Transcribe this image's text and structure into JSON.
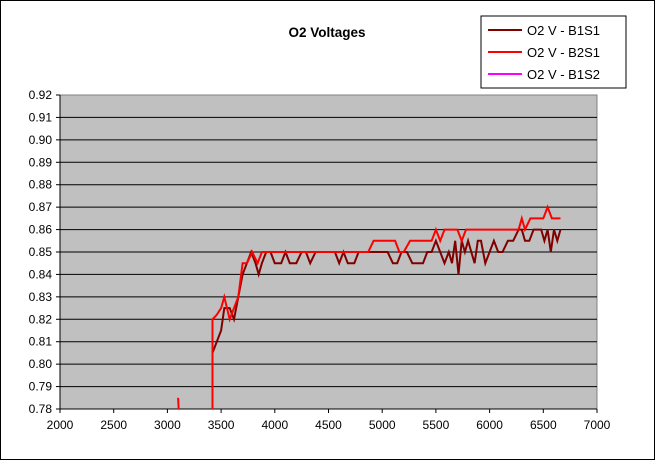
{
  "chart_data": {
    "type": "line",
    "title": "O2 Voltages",
    "xlabel": "",
    "ylabel": "",
    "xlim": [
      2000,
      7000
    ],
    "ylim": [
      0.78,
      0.92
    ],
    "x_ticks": [
      "2000",
      "2500",
      "3000",
      "3500",
      "4000",
      "4500",
      "5000",
      "5500",
      "6000",
      "6500",
      "7000"
    ],
    "y_ticks": [
      "0.78",
      "0.79",
      "0.80",
      "0.81",
      "0.82",
      "0.83",
      "0.84",
      "0.85",
      "0.86",
      "0.87",
      "0.88",
      "0.89",
      "0.90",
      "0.91",
      "0.92"
    ],
    "grid": "horizontal",
    "legend_position": "top-right",
    "colors": {
      "plot_area": "#c0c0c0",
      "frame": "#000000"
    },
    "series": [
      {
        "name": "O2 V - B1S1",
        "color": "#800000",
        "points": [
          [
            3420,
            0.805
          ],
          [
            3460,
            0.81
          ],
          [
            3500,
            0.815
          ],
          [
            3530,
            0.825
          ],
          [
            3580,
            0.825
          ],
          [
            3620,
            0.82
          ],
          [
            3660,
            0.83
          ],
          [
            3700,
            0.84
          ],
          [
            3740,
            0.845
          ],
          [
            3780,
            0.85
          ],
          [
            3820,
            0.845
          ],
          [
            3850,
            0.84
          ],
          [
            3880,
            0.845
          ],
          [
            3920,
            0.85
          ],
          [
            3960,
            0.85
          ],
          [
            4000,
            0.845
          ],
          [
            4060,
            0.845
          ],
          [
            4100,
            0.85
          ],
          [
            4140,
            0.845
          ],
          [
            4200,
            0.845
          ],
          [
            4250,
            0.85
          ],
          [
            4290,
            0.85
          ],
          [
            4330,
            0.845
          ],
          [
            4380,
            0.85
          ],
          [
            4420,
            0.85
          ],
          [
            4470,
            0.85
          ],
          [
            4520,
            0.85
          ],
          [
            4560,
            0.85
          ],
          [
            4600,
            0.845
          ],
          [
            4640,
            0.85
          ],
          [
            4680,
            0.845
          ],
          [
            4740,
            0.845
          ],
          [
            4780,
            0.85
          ],
          [
            4820,
            0.85
          ],
          [
            4870,
            0.85
          ],
          [
            4920,
            0.85
          ],
          [
            4960,
            0.85
          ],
          [
            5000,
            0.85
          ],
          [
            5050,
            0.85
          ],
          [
            5100,
            0.845
          ],
          [
            5140,
            0.845
          ],
          [
            5180,
            0.85
          ],
          [
            5230,
            0.85
          ],
          [
            5280,
            0.845
          ],
          [
            5320,
            0.845
          ],
          [
            5380,
            0.845
          ],
          [
            5420,
            0.85
          ],
          [
            5460,
            0.85
          ],
          [
            5500,
            0.855
          ],
          [
            5540,
            0.85
          ],
          [
            5580,
            0.845
          ],
          [
            5620,
            0.85
          ],
          [
            5650,
            0.845
          ],
          [
            5680,
            0.855
          ],
          [
            5710,
            0.84
          ],
          [
            5740,
            0.855
          ],
          [
            5770,
            0.85
          ],
          [
            5800,
            0.855
          ],
          [
            5830,
            0.85
          ],
          [
            5860,
            0.845
          ],
          [
            5890,
            0.855
          ],
          [
            5920,
            0.855
          ],
          [
            5960,
            0.845
          ],
          [
            6000,
            0.85
          ],
          [
            6040,
            0.855
          ],
          [
            6080,
            0.85
          ],
          [
            6120,
            0.85
          ],
          [
            6170,
            0.855
          ],
          [
            6220,
            0.855
          ],
          [
            6270,
            0.86
          ],
          [
            6300,
            0.86
          ],
          [
            6330,
            0.855
          ],
          [
            6370,
            0.855
          ],
          [
            6410,
            0.86
          ],
          [
            6440,
            0.86
          ],
          [
            6480,
            0.86
          ],
          [
            6510,
            0.855
          ],
          [
            6540,
            0.86
          ],
          [
            6570,
            0.85
          ],
          [
            6600,
            0.86
          ],
          [
            6630,
            0.855
          ],
          [
            6660,
            0.86
          ]
        ]
      },
      {
        "name": "O2 V - B2S1",
        "color": "#ff0000",
        "points": [
          [
            3420,
            0.78
          ],
          [
            3420,
            0.82
          ],
          [
            3460,
            0.822
          ],
          [
            3500,
            0.825
          ],
          [
            3530,
            0.83
          ],
          [
            3580,
            0.82
          ],
          [
            3620,
            0.825
          ],
          [
            3660,
            0.83
          ],
          [
            3700,
            0.845
          ],
          [
            3740,
            0.845
          ],
          [
            3790,
            0.85
          ],
          [
            3840,
            0.845
          ],
          [
            3880,
            0.85
          ],
          [
            3940,
            0.85
          ],
          [
            4000,
            0.85
          ],
          [
            4060,
            0.85
          ],
          [
            4120,
            0.85
          ],
          [
            4200,
            0.85
          ],
          [
            4300,
            0.85
          ],
          [
            4400,
            0.85
          ],
          [
            4500,
            0.85
          ],
          [
            4600,
            0.85
          ],
          [
            4700,
            0.85
          ],
          [
            4800,
            0.85
          ],
          [
            4870,
            0.85
          ],
          [
            4920,
            0.855
          ],
          [
            4970,
            0.855
          ],
          [
            5020,
            0.855
          ],
          [
            5070,
            0.855
          ],
          [
            5120,
            0.855
          ],
          [
            5160,
            0.85
          ],
          [
            5200,
            0.85
          ],
          [
            5260,
            0.855
          ],
          [
            5300,
            0.855
          ],
          [
            5350,
            0.855
          ],
          [
            5400,
            0.855
          ],
          [
            5460,
            0.855
          ],
          [
            5500,
            0.86
          ],
          [
            5540,
            0.855
          ],
          [
            5580,
            0.86
          ],
          [
            5620,
            0.86
          ],
          [
            5660,
            0.86
          ],
          [
            5700,
            0.86
          ],
          [
            5740,
            0.855
          ],
          [
            5780,
            0.86
          ],
          [
            5820,
            0.86
          ],
          [
            5880,
            0.86
          ],
          [
            5940,
            0.86
          ],
          [
            6000,
            0.86
          ],
          [
            6060,
            0.86
          ],
          [
            6120,
            0.86
          ],
          [
            6180,
            0.86
          ],
          [
            6240,
            0.86
          ],
          [
            6270,
            0.86
          ],
          [
            6300,
            0.865
          ],
          [
            6330,
            0.86
          ],
          [
            6380,
            0.865
          ],
          [
            6430,
            0.865
          ],
          [
            6470,
            0.865
          ],
          [
            6500,
            0.865
          ],
          [
            6540,
            0.87
          ],
          [
            6580,
            0.865
          ],
          [
            6620,
            0.865
          ],
          [
            6660,
            0.865
          ]
        ]
      },
      {
        "name": "O2 V - B1S2",
        "color": "#ff00ff",
        "points": []
      }
    ],
    "fragments": [
      {
        "series": "O2 V - B2S1",
        "points": [
          [
            3100,
            0.785
          ],
          [
            3105,
            0.78
          ]
        ]
      }
    ]
  }
}
